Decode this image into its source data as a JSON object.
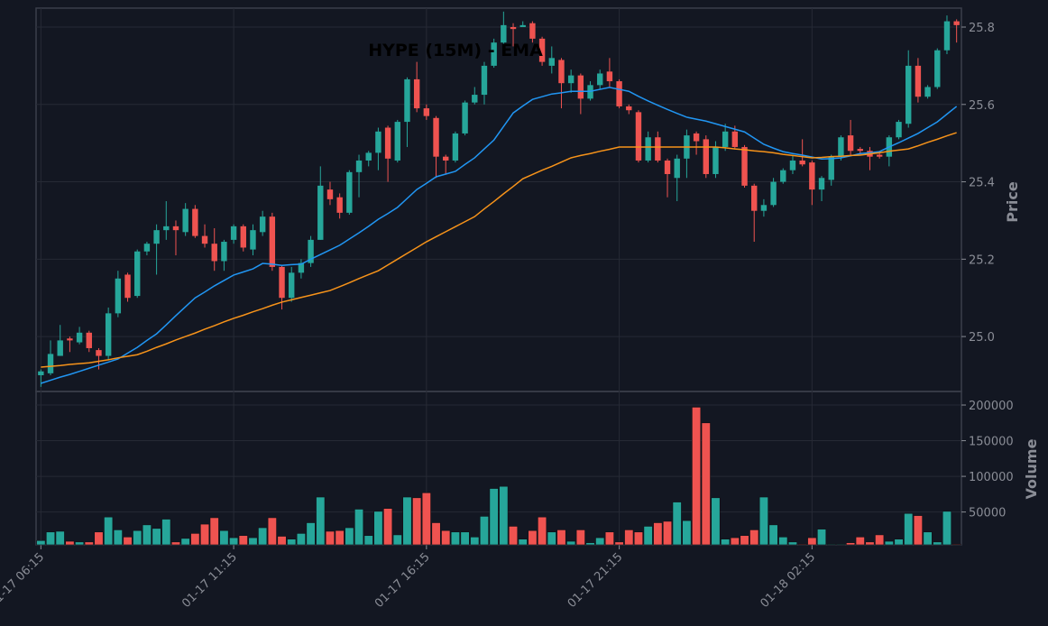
{
  "chart_data": {
    "type": "candlestick",
    "title": "HYPE (15M) - EMA",
    "ylabel": "Price",
    "volume_label": "Volume",
    "up_color": "#26a69a",
    "down_color": "#ef5350",
    "grid": true,
    "categories": [
      "01-17 06:15",
      null,
      null,
      null,
      null,
      null,
      null,
      null,
      null,
      null,
      null,
      null,
      null,
      null,
      null,
      null,
      null,
      null,
      null,
      null,
      "01-17 11:15",
      null,
      null,
      null,
      null,
      null,
      null,
      null,
      null,
      null,
      null,
      null,
      null,
      null,
      null,
      null,
      null,
      null,
      null,
      null,
      "01-17 16:15",
      null,
      null,
      null,
      null,
      null,
      null,
      null,
      null,
      null,
      null,
      null,
      null,
      null,
      null,
      null,
      null,
      null,
      null,
      null,
      "01-17 21:15",
      null,
      null,
      null,
      null,
      null,
      null,
      null,
      null,
      null,
      null,
      null,
      null,
      null,
      null,
      null,
      null,
      null,
      null,
      null,
      "01-18 02:15",
      null,
      null,
      null,
      null,
      null,
      null,
      null,
      null,
      null,
      null,
      null,
      null,
      null,
      null,
      null
    ],
    "candles": {
      "open": [
        24.9,
        24.905,
        24.95,
        24.995,
        24.985,
        25.01,
        24.965,
        24.95,
        25.06,
        25.16,
        25.105,
        25.22,
        25.24,
        25.275,
        25.285,
        25.27,
        25.33,
        25.26,
        25.24,
        25.195,
        25.25,
        25.285,
        25.225,
        25.27,
        25.31,
        25.18,
        25.1,
        25.165,
        25.19,
        25.25,
        25.38,
        25.36,
        25.32,
        25.425,
        25.455,
        25.475,
        25.54,
        25.455,
        25.555,
        25.665,
        25.59,
        25.565,
        25.465,
        25.455,
        25.525,
        25.605,
        25.625,
        25.7,
        25.76,
        25.8,
        25.8,
        25.81,
        25.77,
        25.7,
        25.715,
        25.655,
        25.675,
        25.615,
        25.65,
        25.685,
        25.66,
        25.595,
        25.58,
        25.455,
        25.515,
        25.455,
        25.41,
        25.46,
        25.525,
        25.51,
        25.42,
        25.49,
        25.53,
        25.49,
        25.39,
        25.325,
        25.34,
        25.4,
        25.43,
        25.455,
        25.45,
        25.38,
        25.405,
        25.465,
        25.52,
        25.485,
        25.48,
        25.47,
        25.465,
        25.515,
        25.55,
        25.7,
        25.62,
        25.645,
        25.74,
        25.815
      ],
      "high": [
        24.915,
        24.99,
        25.03,
        25.0,
        25.025,
        25.015,
        24.97,
        25.075,
        25.17,
        25.165,
        25.225,
        25.245,
        25.29,
        25.35,
        25.3,
        25.345,
        25.34,
        25.29,
        25.28,
        25.25,
        25.29,
        25.29,
        25.29,
        25.325,
        25.32,
        25.185,
        25.18,
        25.2,
        25.26,
        25.44,
        25.4,
        25.37,
        25.43,
        25.47,
        25.48,
        25.54,
        25.545,
        25.56,
        25.67,
        25.71,
        25.6,
        25.57,
        25.47,
        25.53,
        25.61,
        25.645,
        25.71,
        25.77,
        25.84,
        25.81,
        25.815,
        25.815,
        25.775,
        25.75,
        25.72,
        25.69,
        25.68,
        25.66,
        25.69,
        25.72,
        25.665,
        25.6,
        25.585,
        25.53,
        25.53,
        25.46,
        25.47,
        25.535,
        25.53,
        25.52,
        25.505,
        25.55,
        25.545,
        25.495,
        25.395,
        25.355,
        25.41,
        25.435,
        25.47,
        25.51,
        25.455,
        25.415,
        25.47,
        25.52,
        25.56,
        25.49,
        25.49,
        25.48,
        25.52,
        25.56,
        25.74,
        25.72,
        25.65,
        25.745,
        25.83,
        25.82
      ],
      "low": [
        24.87,
        24.9,
        24.95,
        24.96,
        24.98,
        24.96,
        24.915,
        24.94,
        25.05,
        25.09,
        25.1,
        25.21,
        25.16,
        25.25,
        25.21,
        25.26,
        25.255,
        25.23,
        25.17,
        25.17,
        25.24,
        25.22,
        25.21,
        25.26,
        25.17,
        25.07,
        25.09,
        25.15,
        25.18,
        25.25,
        25.34,
        25.305,
        25.315,
        25.36,
        25.44,
        25.43,
        25.4,
        25.45,
        25.49,
        25.58,
        25.56,
        25.41,
        25.42,
        25.45,
        25.52,
        25.6,
        25.6,
        25.695,
        25.74,
        25.75,
        25.8,
        25.76,
        25.7,
        25.68,
        25.59,
        25.63,
        25.575,
        25.61,
        25.64,
        25.645,
        25.59,
        25.575,
        25.45,
        25.45,
        25.45,
        25.36,
        25.35,
        25.41,
        25.47,
        25.41,
        25.41,
        25.48,
        25.485,
        25.385,
        25.245,
        25.31,
        25.335,
        25.395,
        25.42,
        25.44,
        25.34,
        25.35,
        25.39,
        25.455,
        25.47,
        25.47,
        25.43,
        25.46,
        25.44,
        25.51,
        25.54,
        25.605,
        25.615,
        25.64,
        25.73,
        25.76
      ],
      "close": [
        24.91,
        24.955,
        24.99,
        24.99,
        25.01,
        24.97,
        24.95,
        25.06,
        25.15,
        25.1,
        25.22,
        25.24,
        25.275,
        25.285,
        25.275,
        25.33,
        25.26,
        25.24,
        25.195,
        25.245,
        25.285,
        25.23,
        25.275,
        25.31,
        25.18,
        25.1,
        25.165,
        25.19,
        25.25,
        25.39,
        25.355,
        25.32,
        25.425,
        25.455,
        25.475,
        25.53,
        25.46,
        25.555,
        25.665,
        25.59,
        25.57,
        25.465,
        25.455,
        25.525,
        25.605,
        25.625,
        25.7,
        25.76,
        25.805,
        25.795,
        25.805,
        25.77,
        25.71,
        25.72,
        25.655,
        25.675,
        25.615,
        25.65,
        25.68,
        25.66,
        25.595,
        25.585,
        25.455,
        25.515,
        25.455,
        25.42,
        25.46,
        25.52,
        25.505,
        25.42,
        25.49,
        25.53,
        25.49,
        25.39,
        25.325,
        25.34,
        25.4,
        25.43,
        25.455,
        25.445,
        25.38,
        25.41,
        25.465,
        25.515,
        25.48,
        25.48,
        25.465,
        25.465,
        25.515,
        25.555,
        25.7,
        25.62,
        25.645,
        25.74,
        25.815,
        25.805
      ]
    },
    "ema": [
      {
        "color": "#2196f3",
        "values": [
          24.879,
          24.887,
          24.895,
          24.902,
          24.91,
          24.918,
          24.926,
          24.934,
          24.942,
          24.957,
          24.972,
          24.99,
          25.007,
          25.03,
          25.054,
          25.077,
          25.1,
          25.115,
          25.131,
          25.145,
          25.159,
          25.167,
          25.175,
          25.189,
          25.187,
          25.184,
          25.186,
          25.187,
          25.2,
          25.212,
          25.224,
          25.236,
          25.252,
          25.268,
          25.285,
          25.303,
          25.318,
          25.334,
          25.357,
          25.38,
          25.396,
          25.413,
          25.42,
          25.427,
          25.445,
          25.462,
          25.485,
          25.508,
          25.543,
          25.578,
          25.596,
          25.613,
          25.62,
          25.627,
          25.63,
          25.634,
          25.634,
          25.634,
          25.639,
          25.644,
          25.639,
          25.634,
          25.621,
          25.609,
          25.598,
          25.587,
          25.577,
          25.567,
          25.562,
          25.557,
          25.55,
          25.543,
          25.536,
          25.529,
          25.513,
          25.497,
          25.487,
          25.478,
          25.473,
          25.469,
          25.464,
          25.459,
          25.46,
          25.462,
          25.467,
          25.473,
          25.475,
          25.478,
          25.49,
          25.501,
          25.513,
          25.525,
          25.54,
          25.555,
          25.575,
          25.595
        ]
      },
      {
        "color": "#f7931a",
        "values": [
          24.921,
          24.923,
          24.925,
          24.928,
          24.93,
          24.932,
          24.936,
          24.94,
          24.945,
          24.949,
          24.953,
          24.962,
          24.972,
          24.981,
          24.991,
          25.0,
          25.009,
          25.019,
          25.028,
          25.038,
          25.047,
          25.055,
          25.064,
          25.072,
          25.081,
          25.089,
          25.095,
          25.101,
          25.107,
          25.113,
          25.119,
          25.129,
          25.139,
          25.15,
          25.16,
          25.17,
          25.185,
          25.2,
          25.215,
          25.23,
          25.245,
          25.258,
          25.271,
          25.284,
          25.297,
          25.31,
          25.33,
          25.349,
          25.369,
          25.388,
          25.408,
          25.419,
          25.43,
          25.44,
          25.451,
          25.462,
          25.468,
          25.473,
          25.479,
          25.484,
          25.49,
          25.49,
          25.49,
          25.49,
          25.49,
          25.49,
          25.49,
          25.49,
          25.49,
          25.49,
          25.49,
          25.488,
          25.485,
          25.483,
          25.48,
          25.478,
          25.475,
          25.471,
          25.468,
          25.465,
          25.462,
          25.463,
          25.465,
          25.466,
          25.468,
          25.469,
          25.472,
          25.475,
          25.479,
          25.482,
          25.485,
          25.493,
          25.502,
          25.51,
          25.519,
          25.527
        ]
      }
    ],
    "volume": [
      10000,
      22000,
      23000,
      9000,
      8000,
      8000,
      22000,
      43000,
      25000,
      15000,
      24000,
      32000,
      27000,
      40000,
      8000,
      13000,
      20000,
      33000,
      42000,
      24000,
      14000,
      17000,
      14000,
      28000,
      42000,
      16000,
      12000,
      20000,
      35000,
      71000,
      23000,
      24000,
      28000,
      54000,
      17000,
      51000,
      55000,
      18000,
      71000,
      70000,
      77000,
      35000,
      24000,
      22000,
      22000,
      15000,
      44000,
      83000,
      86000,
      30000,
      12000,
      24000,
      43000,
      22000,
      25000,
      9000,
      25000,
      7000,
      14000,
      22000,
      8000,
      25000,
      22000,
      30000,
      35000,
      37000,
      64000,
      38000,
      197000,
      175000,
      70000,
      12000,
      14000,
      17000,
      25000,
      71000,
      32000,
      15000,
      8000,
      5000,
      14000,
      26000,
      5000,
      5000,
      7000,
      15000,
      8000,
      18000,
      9000,
      12000,
      48000,
      45000,
      22000,
      8000,
      51000,
      5000
    ],
    "ylim": [
      24.858,
      25.849
    ],
    "yticks": [
      {
        "value": 25,
        "label": "25.0"
      },
      25.2,
      25.4,
      25.6,
      25.8
    ],
    "volume_ylim": [
      4000,
      219000
    ],
    "volume_yticks": [
      50000,
      100000,
      150000,
      200000
    ]
  }
}
